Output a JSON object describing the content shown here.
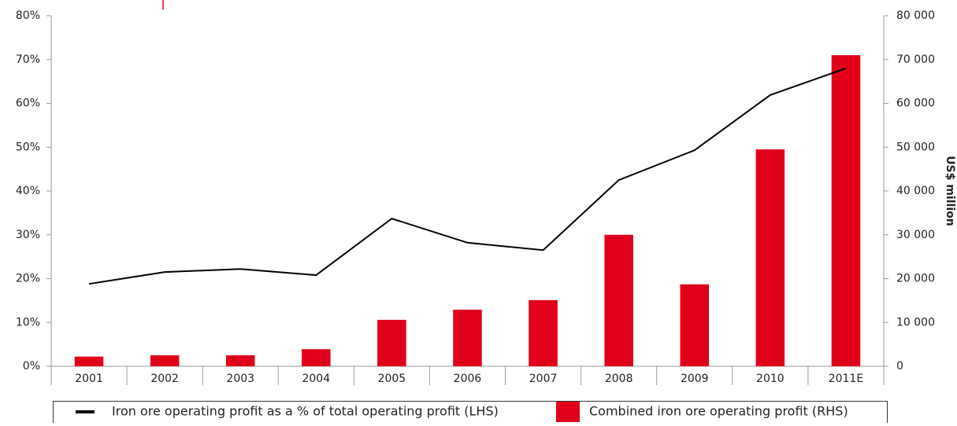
{
  "chart_data": {
    "type": "combo",
    "categories": [
      "2001",
      "2002",
      "2003",
      "2004",
      "2005",
      "2006",
      "2007",
      "2008",
      "2009",
      "2010",
      "2011E"
    ],
    "series": [
      {
        "name": "Iron ore operating profit as a % of total operating profit (LHS)",
        "type": "line",
        "color": "#000000",
        "axis": "y",
        "values": [
          18.8,
          21.5,
          22.2,
          20.8,
          33.7,
          28.2,
          26.5,
          42.5,
          49.3,
          61.9,
          68
        ]
      },
      {
        "name": "Combined iron ore operating profit (RHS)",
        "type": "bar",
        "color": "#e1001a",
        "axis": "y2",
        "values": [
          2200,
          2500,
          2500,
          3900,
          10600,
          12900,
          15100,
          30000,
          18700,
          49500,
          71000
        ]
      }
    ],
    "ylim": [
      0,
      80
    ],
    "yticks": [
      {
        "value": 0,
        "label": "0%"
      },
      {
        "value": 10,
        "label": "10%"
      },
      {
        "value": 20,
        "label": "20%"
      },
      {
        "value": 30,
        "label": "30%"
      },
      {
        "value": 40,
        "label": "40%"
      },
      {
        "value": 50,
        "label": "50%"
      },
      {
        "value": 60,
        "label": "60%"
      },
      {
        "value": 70,
        "label": "70%"
      },
      {
        "value": 80,
        "label": "80%"
      }
    ],
    "y2lim": [
      0,
      80000
    ],
    "y2ticks": [
      0,
      {
        "value": 10000,
        "label": "10 000"
      },
      {
        "value": 20000,
        "label": "20 000"
      },
      {
        "value": 30000,
        "label": "30 000"
      },
      {
        "value": 40000,
        "label": "40 000"
      },
      {
        "value": 50000,
        "label": "50 000"
      },
      {
        "value": 60000,
        "label": "60 000"
      },
      {
        "value": 70000,
        "label": "70 000"
      },
      {
        "value": 80000,
        "label": "80 000"
      }
    ],
    "y2label": "US$ million",
    "legend": "bottom"
  }
}
